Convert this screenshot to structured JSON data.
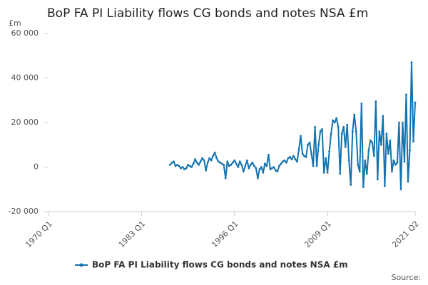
{
  "chart_data": {
    "type": "line",
    "title": "BoP FA PI Liability flows CG bonds and notes NSA £m",
    "y_label": "£m",
    "source": "Source:",
    "categories": [
      "1970 Q1",
      null,
      null,
      null,
      null,
      null,
      null,
      null,
      null,
      null,
      null,
      null,
      null,
      null,
      null,
      null,
      null,
      null,
      null,
      null,
      null,
      null,
      null,
      null,
      null,
      null,
      null,
      null,
      null,
      null,
      null,
      null,
      null,
      null,
      null,
      null,
      null,
      null,
      null,
      null,
      null,
      null,
      null,
      null,
      null,
      null,
      null,
      null,
      null,
      null,
      null,
      null,
      "1983 Q1",
      null,
      null,
      null,
      null,
      null,
      null,
      null,
      null,
      null,
      null,
      null,
      null,
      null,
      null,
      null,
      null,
      null,
      null,
      null,
      null,
      null,
      null,
      null,
      null,
      null,
      null,
      null,
      null,
      null,
      null,
      null,
      null,
      null,
      null,
      null,
      null,
      null,
      null,
      null,
      null,
      null,
      null,
      null,
      null,
      null,
      null,
      null,
      null,
      null,
      null,
      null,
      "1996 Q1",
      null,
      null,
      null,
      null,
      null,
      null,
      null,
      null,
      null,
      null,
      null,
      null,
      null,
      null,
      null,
      null,
      null,
      null,
      null,
      null,
      null,
      null,
      null,
      null,
      null,
      null,
      null,
      null,
      null,
      null,
      null,
      null,
      null,
      null,
      null,
      null,
      null,
      null,
      null,
      null,
      null,
      null,
      null,
      null,
      null,
      null,
      null,
      null,
      null,
      null,
      null,
      "2009 Q1",
      null,
      null,
      null,
      null,
      null,
      null,
      null,
      null,
      null,
      null,
      null,
      null,
      null,
      null,
      null,
      null,
      null,
      null,
      null,
      null,
      null,
      null,
      null,
      null,
      null,
      null,
      null,
      null,
      null,
      null,
      null,
      null,
      null,
      null,
      null,
      null,
      null,
      null,
      null,
      null,
      null,
      null,
      null,
      null,
      null,
      null,
      null,
      null,
      "2021 Q2"
    ],
    "series": [
      {
        "name": "BoP FA PI Liability flows CG bonds and notes NSA £m",
        "color": "#1273b0",
        "values": [
          null,
          null,
          null,
          null,
          null,
          null,
          null,
          null,
          null,
          null,
          null,
          null,
          null,
          null,
          null,
          null,
          null,
          null,
          null,
          null,
          null,
          null,
          null,
          null,
          null,
          null,
          null,
          null,
          null,
          null,
          null,
          null,
          null,
          null,
          null,
          null,
          null,
          null,
          null,
          null,
          null,
          null,
          null,
          null,
          null,
          null,
          null,
          null,
          null,
          null,
          null,
          null,
          null,
          null,
          null,
          null,
          null,
          null,
          null,
          null,
          null,
          null,
          null,
          null,
          null,
          null,
          null,
          null,
          1000,
          2000,
          2500,
          500,
          1000,
          500,
          -500,
          0,
          -1000,
          -500,
          1000,
          500,
          0,
          1500,
          3500,
          2000,
          1000,
          2500,
          4000,
          3000,
          -1500,
          2000,
          4000,
          3000,
          5000,
          6500,
          4000,
          2500,
          2000,
          1500,
          1000,
          -5000,
          2500,
          500,
          1000,
          2000,
          3000,
          1500,
          0,
          2500,
          1000,
          -2000,
          500,
          3000,
          -500,
          1000,
          2000,
          500,
          -500,
          -5000,
          -1000,
          0,
          -2500,
          1500,
          500,
          5500,
          -1000,
          -500,
          0,
          -1500,
          -2000,
          500,
          1500,
          2500,
          3000,
          2000,
          4000,
          4500,
          3500,
          5000,
          3500,
          2500,
          8000,
          14000,
          6000,
          5000,
          4500,
          10000,
          11000,
          6000,
          500,
          18000,
          500,
          10000,
          16000,
          17000,
          -2500,
          4000,
          -2500,
          7000,
          15000,
          21000,
          20000,
          22000,
          18000,
          -3000,
          15000,
          18000,
          9000,
          19000,
          3000,
          -8000,
          16000,
          23500,
          16000,
          1000,
          -2000,
          28500,
          -9000,
          3000,
          -3000,
          7500,
          12000,
          11000,
          5000,
          29500,
          -5500,
          16000,
          10000,
          23000,
          -8500,
          15000,
          6000,
          12000,
          -2000,
          3000,
          1000,
          2000,
          20000,
          -10000,
          20000,
          2500,
          32500,
          -6500,
          7500,
          47000,
          11500,
          29000
        ]
      }
    ],
    "ylim": [
      -20000,
      60000
    ],
    "yticks": [
      {
        "value": -20000,
        "label": "-20 000"
      },
      0,
      {
        "value": 20000,
        "label": "20 000"
      },
      {
        "value": 40000,
        "label": "40 000"
      },
      {
        "value": 60000,
        "label": "60 000"
      }
    ],
    "grid": false,
    "legend": "bottom"
  }
}
